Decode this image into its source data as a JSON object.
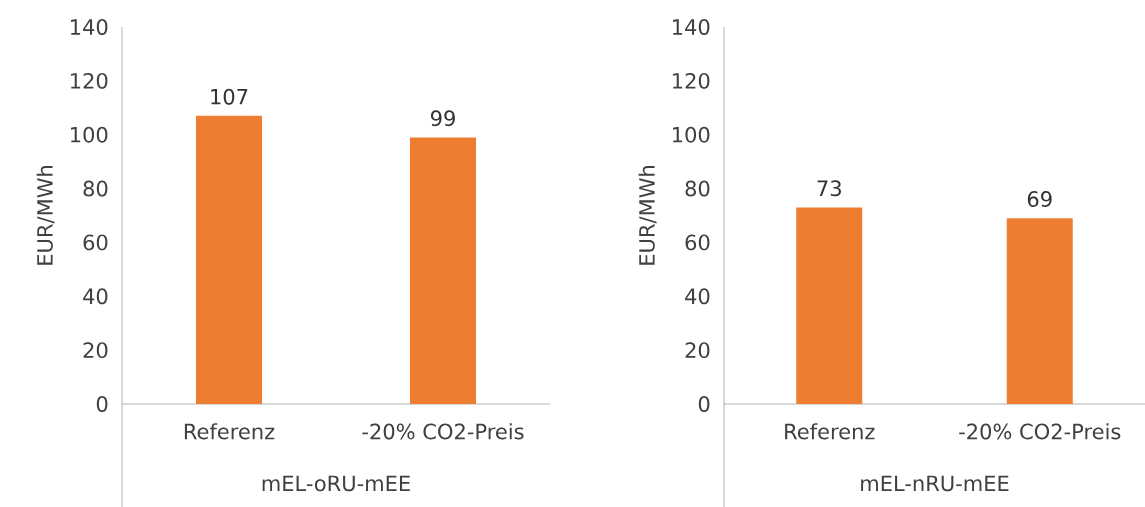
{
  "chart_data": [
    {
      "type": "bar",
      "categories": [
        "Referenz",
        "-20% CO2-Preis"
      ],
      "values": [
        107,
        99
      ],
      "color": "#ed7d31",
      "ylim": [
        0,
        140
      ],
      "yticks": [
        0,
        20,
        40,
        60,
        80,
        100,
        120,
        140
      ],
      "ylabel": "EUR/MWh",
      "xlabel": "mEL-oRU-mEE",
      "data_labels": true
    },
    {
      "type": "bar",
      "categories": [
        "Referenz",
        "-20% CO2-Preis"
      ],
      "values": [
        73,
        69
      ],
      "color": "#ed7d31",
      "ylim": [
        0,
        140
      ],
      "yticks": [
        0,
        20,
        40,
        60,
        80,
        100,
        120,
        140
      ],
      "ylabel": "EUR/MWh",
      "xlabel": "mEL-nRU-mEE",
      "data_labels": true
    }
  ]
}
